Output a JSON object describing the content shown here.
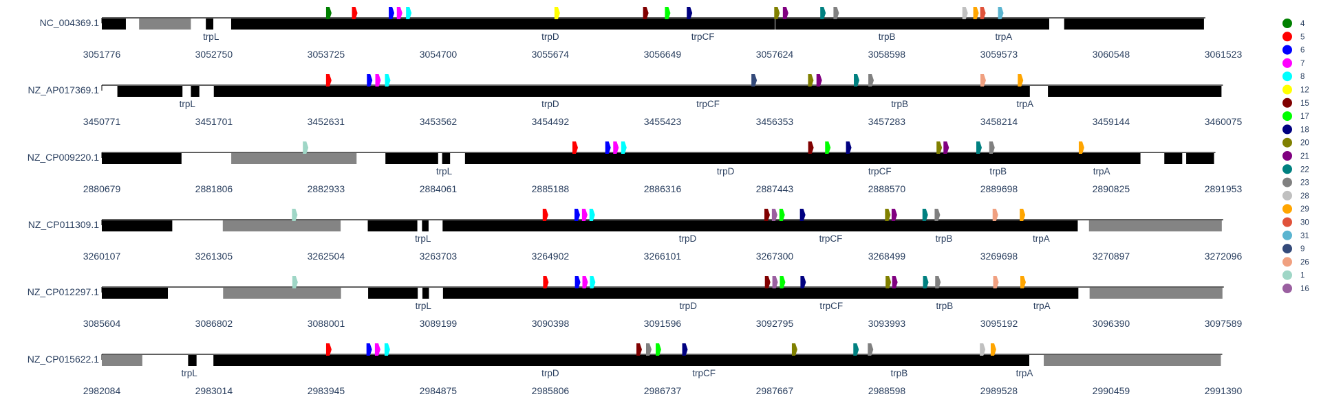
{
  "chart_data": {
    "type": "genome-track",
    "motif_colors": {
      "4": "#008000",
      "5": "#ff0000",
      "6": "#0000ff",
      "7": "#ff00ff",
      "8": "#00ffff",
      "12": "#ffff00",
      "15": "#800000",
      "17": "#00ff00",
      "18": "#000080",
      "20": "#808000",
      "21": "#800080",
      "22": "#008080",
      "23": "#808080",
      "28": "#c0c0c0",
      "29": "#ffa500",
      "30": "#e0523a",
      "31": "#5ab4d0",
      "9": "#344a7a",
      "26": "#f0a080",
      "1": "#9fd6c6",
      "16": "#9a5fa0"
    },
    "legend": [
      "4",
      "5",
      "6",
      "7",
      "8",
      "12",
      "15",
      "17",
      "18",
      "20",
      "21",
      "22",
      "23",
      "28",
      "29",
      "30",
      "31",
      "9",
      "26",
      "1",
      "16"
    ],
    "tracks": [
      {
        "name": "NC_004369.1",
        "xmin": 3051776,
        "xmax": 3061523,
        "ticks": [
          3051776,
          3052750,
          3053725,
          3054700,
          3055674,
          3056649,
          3057624,
          3058598,
          3059573,
          3060548,
          3061523
        ],
        "genes": [
          {
            "start": 3051776,
            "end": 3051985,
            "color": "black"
          },
          {
            "start": 3052100,
            "end": 3052550,
            "color": "gray"
          },
          {
            "start": 3052680,
            "end": 3052745,
            "color": "black",
            "label": "trpL"
          },
          {
            "start": 3052900,
            "end": 3057625,
            "color": "black",
            "label": "trpD"
          },
          {
            "start": 3057630,
            "end": 3060010,
            "color": "black"
          },
          {
            "start": 3060140,
            "end": 3061355,
            "color": "black"
          }
        ],
        "labels": [
          {
            "text": "trpL",
            "x": 3052725
          },
          {
            "text": "trpD",
            "x": 3055674
          },
          {
            "text": "trpCF",
            "x": 3057000
          },
          {
            "text": "trpB",
            "x": 3058600
          },
          {
            "text": "trpA",
            "x": 3059615
          }
        ],
        "motifs": [
          {
            "m": "4",
            "x": 3053725
          },
          {
            "m": "5",
            "x": 3053950
          },
          {
            "m": "6",
            "x": 3054270
          },
          {
            "m": "7",
            "x": 3054340
          },
          {
            "m": "8",
            "x": 3054420
          },
          {
            "m": "12",
            "x": 3055710
          },
          {
            "m": "15",
            "x": 3056480
          },
          {
            "m": "17",
            "x": 3056670
          },
          {
            "m": "18",
            "x": 3056860
          },
          {
            "m": "20",
            "x": 3057620
          },
          {
            "m": "21",
            "x": 3057695
          },
          {
            "m": "22",
            "x": 3058020
          },
          {
            "m": "23",
            "x": 3058135
          },
          {
            "m": "28",
            "x": 3059255
          },
          {
            "m": "29",
            "x": 3059350
          },
          {
            "m": "30",
            "x": 3059410
          },
          {
            "m": "31",
            "x": 3059565
          }
        ]
      },
      {
        "name": "NZ_AP017369.1",
        "xmin": 3450771,
        "xmax": 3460075,
        "ticks": [
          3450771,
          3451701,
          3452631,
          3453562,
          3454492,
          3455423,
          3456353,
          3457283,
          3458214,
          3459144,
          3460075
        ],
        "genes": [
          {
            "start": 3450900,
            "end": 3451440,
            "color": "black"
          },
          {
            "start": 3451510,
            "end": 3451580,
            "color": "black",
            "label": "trpL"
          },
          {
            "start": 3451700,
            "end": 3458470,
            "color": "black",
            "label": "trpD"
          },
          {
            "start": 3458620,
            "end": 3460060,
            "color": "black"
          }
        ],
        "labels": [
          {
            "text": "trpL",
            "x": 3451480
          },
          {
            "text": "trpD",
            "x": 3454492
          },
          {
            "text": "trpCF",
            "x": 3455800
          },
          {
            "text": "trpB",
            "x": 3457390
          },
          {
            "text": "trpA",
            "x": 3458430
          }
        ],
        "motifs": [
          {
            "m": "5",
            "x": 3452631
          },
          {
            "m": "6",
            "x": 3452970
          },
          {
            "m": "7",
            "x": 3453040
          },
          {
            "m": "8",
            "x": 3453120
          },
          {
            "m": "9",
            "x": 3456160
          },
          {
            "m": "20",
            "x": 3456630
          },
          {
            "m": "21",
            "x": 3456700
          },
          {
            "m": "22",
            "x": 3457010
          },
          {
            "m": "23",
            "x": 3457130
          },
          {
            "m": "26",
            "x": 3458060
          },
          {
            "m": "29",
            "x": 3458370
          }
        ]
      },
      {
        "name": "NZ_CP009220.1",
        "xmin": 2880679,
        "xmax": 2891953,
        "ticks": [
          2880679,
          2881806,
          2882933,
          2884061,
          2885188,
          2886316,
          2887443,
          2888570,
          2889698,
          2890825,
          2891953
        ],
        "genes": [
          {
            "start": 2880679,
            "end": 2881480,
            "color": "black"
          },
          {
            "start": 2881980,
            "end": 2883240,
            "color": "gray"
          },
          {
            "start": 2883530,
            "end": 2884060,
            "color": "black"
          },
          {
            "start": 2884100,
            "end": 2884180,
            "color": "black",
            "label": "trpL"
          },
          {
            "start": 2884330,
            "end": 2891120,
            "color": "black",
            "label": "trpD"
          },
          {
            "start": 2891360,
            "end": 2891540,
            "color": "black"
          },
          {
            "start": 2891580,
            "end": 2891860,
            "color": "black"
          }
        ],
        "labels": [
          {
            "text": "trpL",
            "x": 2884120
          },
          {
            "text": "trpD",
            "x": 2886950
          },
          {
            "text": "trpCF",
            "x": 2888500
          },
          {
            "text": "trpB",
            "x": 2889690
          },
          {
            "text": "trpA",
            "x": 2890730
          }
        ],
        "motifs": [
          {
            "m": "1",
            "x": 2882700
          },
          {
            "m": "5",
            "x": 2885410
          },
          {
            "m": "6",
            "x": 2885740
          },
          {
            "m": "7",
            "x": 2885820
          },
          {
            "m": "8",
            "x": 2885900
          },
          {
            "m": "15",
            "x": 2887780
          },
          {
            "m": "17",
            "x": 2887950
          },
          {
            "m": "18",
            "x": 2888160
          },
          {
            "m": "20",
            "x": 2889070
          },
          {
            "m": "21",
            "x": 2889140
          },
          {
            "m": "22",
            "x": 2889470
          },
          {
            "m": "23",
            "x": 2889600
          },
          {
            "m": "29",
            "x": 2890500
          }
        ]
      },
      {
        "name": "NZ_CP011309.1",
        "xmin": 3260107,
        "xmax": 3272096,
        "ticks": [
          3260107,
          3261305,
          3262504,
          3263703,
          3264902,
          3266101,
          3267300,
          3268499,
          3269698,
          3270897,
          3272096
        ],
        "genes": [
          {
            "start": 3260107,
            "end": 3260860,
            "color": "black"
          },
          {
            "start": 3261400,
            "end": 3262660,
            "color": "gray"
          },
          {
            "start": 3262950,
            "end": 3263480,
            "color": "black"
          },
          {
            "start": 3263530,
            "end": 3263600,
            "color": "black",
            "label": "trpL"
          },
          {
            "start": 3263750,
            "end": 3270540,
            "color": "black",
            "label": "trpD"
          },
          {
            "start": 3270660,
            "end": 3272080,
            "color": "gray"
          }
        ],
        "labels": [
          {
            "text": "trpL",
            "x": 3263540
          },
          {
            "text": "trpD",
            "x": 3266370
          },
          {
            "text": "trpCF",
            "x": 3267900
          },
          {
            "text": "trpB",
            "x": 3269110
          },
          {
            "text": "trpA",
            "x": 3270150
          }
        ],
        "motifs": [
          {
            "m": "1",
            "x": 3262140
          },
          {
            "m": "5",
            "x": 3264820
          },
          {
            "m": "6",
            "x": 3265160
          },
          {
            "m": "7",
            "x": 3265240
          },
          {
            "m": "8",
            "x": 3265320
          },
          {
            "m": "15",
            "x": 3267190
          },
          {
            "m": "16",
            "x": 3267270
          },
          {
            "m": "17",
            "x": 3267350
          },
          {
            "m": "18",
            "x": 3267570
          },
          {
            "m": "20",
            "x": 3268480
          },
          {
            "m": "21",
            "x": 3268550
          },
          {
            "m": "22",
            "x": 3268880
          },
          {
            "m": "23",
            "x": 3269010
          },
          {
            "m": "26",
            "x": 3269630
          },
          {
            "m": "29",
            "x": 3269920
          }
        ]
      },
      {
        "name": "NZ_CP012297.1",
        "xmin": 3085604,
        "xmax": 3097589,
        "ticks": [
          3085604,
          3086802,
          3088001,
          3089199,
          3090398,
          3091596,
          3092795,
          3093993,
          3095192,
          3096390,
          3097589
        ],
        "genes": [
          {
            "start": 3085604,
            "end": 3086310,
            "color": "black"
          },
          {
            "start": 3086900,
            "end": 3088160,
            "color": "gray"
          },
          {
            "start": 3088450,
            "end": 3088980,
            "color": "black"
          },
          {
            "start": 3089030,
            "end": 3089100,
            "color": "black",
            "label": "trpL"
          },
          {
            "start": 3089250,
            "end": 3096040,
            "color": "black",
            "label": "trpD"
          },
          {
            "start": 3096160,
            "end": 3097580,
            "color": "gray"
          }
        ],
        "labels": [
          {
            "text": "trpL",
            "x": 3089040
          },
          {
            "text": "trpD",
            "x": 3091870
          },
          {
            "text": "trpCF",
            "x": 3093400
          },
          {
            "text": "trpB",
            "x": 3094610
          },
          {
            "text": "trpA",
            "x": 3095650
          }
        ],
        "motifs": [
          {
            "m": "1",
            "x": 3087640
          },
          {
            "m": "5",
            "x": 3090320
          },
          {
            "m": "6",
            "x": 3090660
          },
          {
            "m": "7",
            "x": 3090740
          },
          {
            "m": "8",
            "x": 3090820
          },
          {
            "m": "15",
            "x": 3092690
          },
          {
            "m": "16",
            "x": 3092770
          },
          {
            "m": "17",
            "x": 3092850
          },
          {
            "m": "18",
            "x": 3093070
          },
          {
            "m": "20",
            "x": 3093980
          },
          {
            "m": "21",
            "x": 3094050
          },
          {
            "m": "22",
            "x": 3094380
          },
          {
            "m": "23",
            "x": 3094510
          },
          {
            "m": "26",
            "x": 3095130
          },
          {
            "m": "29",
            "x": 3095420
          }
        ]
      },
      {
        "name": "NZ_CP015622.1",
        "xmin": 2982084,
        "xmax": 2991390,
        "ticks": [
          2982084,
          2983014,
          2983945,
          2984875,
          2985806,
          2986737,
          2987667,
          2988598,
          2989528,
          2990459,
          2991390
        ],
        "genes": [
          {
            "start": 2982084,
            "end": 2982420,
            "color": "gray"
          },
          {
            "start": 2982800,
            "end": 2982870,
            "color": "black",
            "label": "trpL"
          },
          {
            "start": 2983010,
            "end": 2989780,
            "color": "black",
            "label": "trpD"
          },
          {
            "start": 2989900,
            "end": 2991370,
            "color": "gray"
          }
        ],
        "labels": [
          {
            "text": "trpL",
            "x": 2982810
          },
          {
            "text": "trpD",
            "x": 2985806
          },
          {
            "text": "trpCF",
            "x": 2987080
          },
          {
            "text": "trpB",
            "x": 2988700
          },
          {
            "text": "trpA",
            "x": 2989740
          }
        ],
        "motifs": [
          {
            "m": "5",
            "x": 2983945
          },
          {
            "m": "6",
            "x": 2984280
          },
          {
            "m": "7",
            "x": 2984350
          },
          {
            "m": "8",
            "x": 2984430
          },
          {
            "m": "15",
            "x": 2986520
          },
          {
            "m": "23",
            "x": 2986600
          },
          {
            "m": "17",
            "x": 2986680
          },
          {
            "m": "18",
            "x": 2986900
          },
          {
            "m": "20",
            "x": 2987810
          },
          {
            "m": "22",
            "x": 2988320
          },
          {
            "m": "23",
            "x": 2988440
          },
          {
            "m": "28",
            "x": 2989370
          },
          {
            "m": "29",
            "x": 2989460
          }
        ]
      }
    ]
  }
}
